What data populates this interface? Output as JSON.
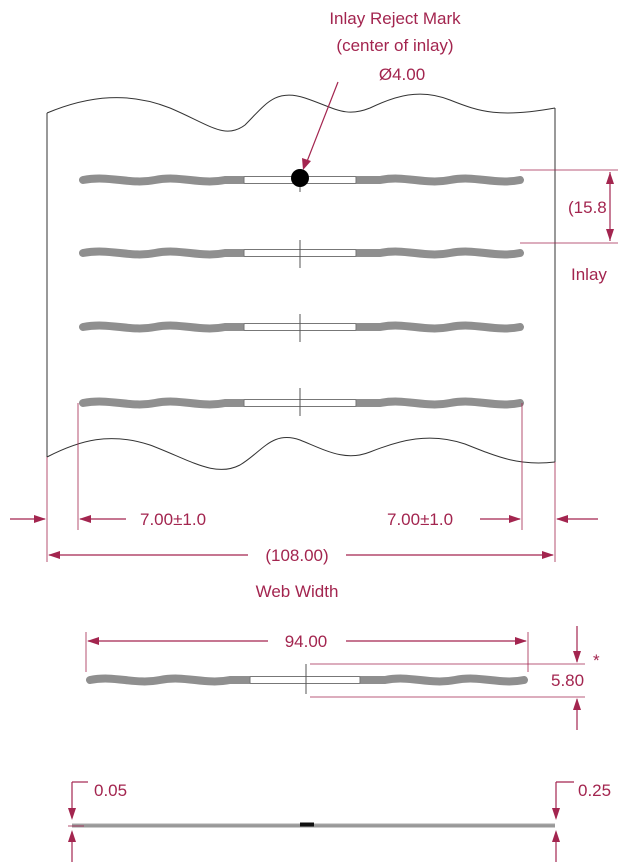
{
  "labels": {
    "reject_mark_line1": "Inlay Reject Mark",
    "reject_mark_line2": "(center of inlay)",
    "reject_mark_diameter": "Ø4.00",
    "pitch": "(15.8",
    "pitch_caption": "Inlay",
    "margin_left": "7.00±1.0",
    "margin_right": "7.00±1.0",
    "web_width": "(108.00)",
    "web_width_caption": "Web Width",
    "inlay_length": "94.00",
    "inlay_height": "5.80",
    "asterisk": "*",
    "thickness_left": "0.05",
    "thickness_right": "0.25"
  },
  "colors": {
    "dimension": "#a3254f",
    "antenna": "#8f8f8f",
    "outline": "#333333"
  }
}
